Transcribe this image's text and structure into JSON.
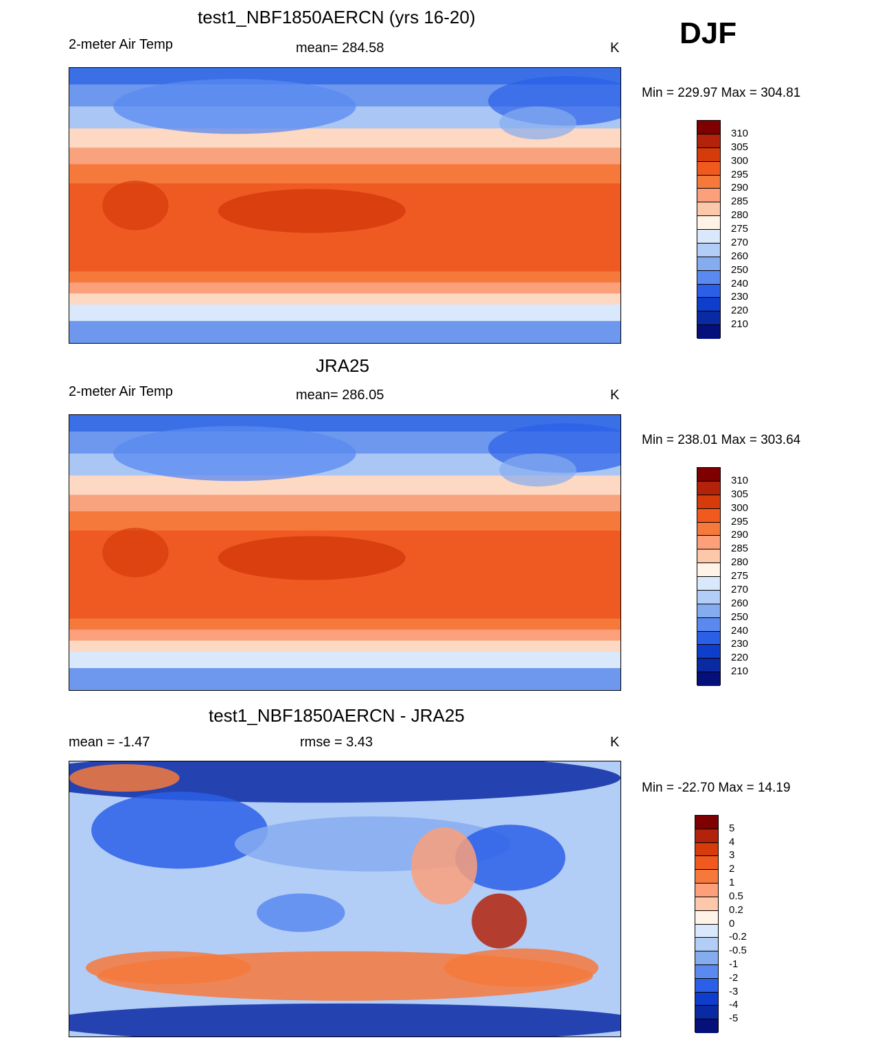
{
  "season": "DJF",
  "panels": [
    {
      "title": "test1_NBF1850AERCN (yrs 16-20)",
      "left_label": "2-meter Air Temp",
      "center_label": "mean= 284.58",
      "units": "K",
      "minmax": "Min = 229.97 Max = 304.81",
      "map_kind": "abs"
    },
    {
      "title": "JRA25",
      "left_label": "2-meter Air Temp",
      "center_label": "mean= 286.05",
      "units": "K",
      "minmax": "Min = 238.01 Max = 303.64",
      "map_kind": "abs"
    },
    {
      "title": "test1_NBF1850AERCN - JRA25",
      "left_label": "mean =  -1.47",
      "center_label": "rmse =   3.43",
      "units": "K",
      "minmax": "Min = -22.70 Max =  14.19",
      "map_kind": "diff"
    }
  ],
  "colorbar_abs": {
    "labels": [
      "310",
      "305",
      "300",
      "295",
      "290",
      "285",
      "280",
      "275",
      "270",
      "260",
      "250",
      "240",
      "230",
      "220",
      "210"
    ],
    "colors": [
      "#7f0000",
      "#b3230b",
      "#d63b0c",
      "#f05a1e",
      "#f6793c",
      "#fba07a",
      "#fdc7aa",
      "#fff2e6",
      "#d9e8fb",
      "#b2cdf6",
      "#86acf0",
      "#5a8af0",
      "#2b5fe8",
      "#0f3dcc",
      "#0a2aa3",
      "#05107a"
    ]
  },
  "colorbar_diff": {
    "labels": [
      "5",
      "4",
      "3",
      "2",
      "1",
      "0.5",
      "0.2",
      "0",
      "-0.2",
      "-0.5",
      "-1",
      "-2",
      "-3",
      "-4",
      "-5"
    ],
    "colors": [
      "#7f0000",
      "#b3230b",
      "#d63b0c",
      "#f05a1e",
      "#f6793c",
      "#fba07a",
      "#fdc7aa",
      "#fff2e6",
      "#d9e8fb",
      "#b2cdf6",
      "#86acf0",
      "#5a8af0",
      "#2b5fe8",
      "#0f3dcc",
      "#0a2aa3",
      "#05107a"
    ]
  }
}
